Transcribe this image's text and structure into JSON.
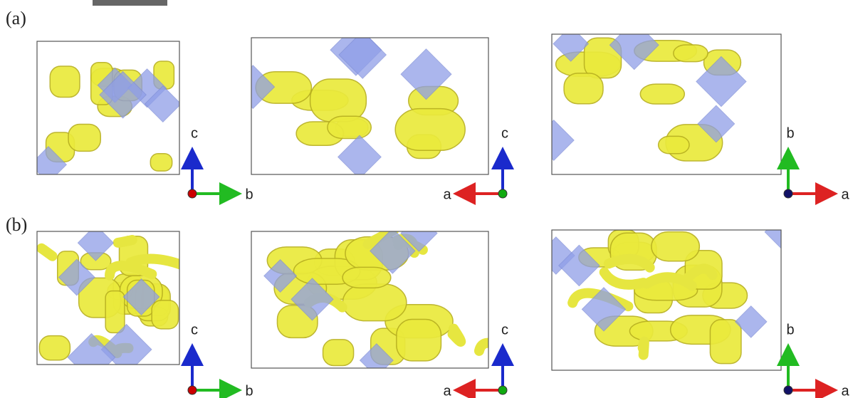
{
  "rows": [
    {
      "label": "(a)",
      "panels": [
        {
          "axes": {
            "vertical": "c",
            "horizontal": "b"
          }
        },
        {
          "axes": {
            "vertical": "c",
            "horizontal": "a"
          }
        },
        {
          "axes": {
            "vertical": "b",
            "horizontal": "a"
          }
        }
      ]
    },
    {
      "label": "(b)",
      "panels": [
        {
          "axes": {
            "vertical": "c",
            "horizontal": "b"
          }
        },
        {
          "axes": {
            "vertical": "c",
            "horizontal": "a"
          }
        },
        {
          "axes": {
            "vertical": "b",
            "horizontal": "a"
          }
        }
      ]
    }
  ]
}
